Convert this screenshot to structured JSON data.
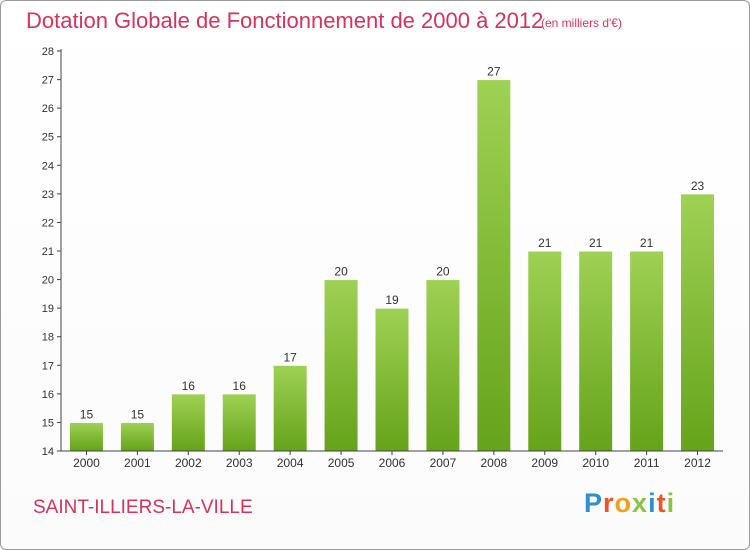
{
  "header": {
    "title": "Dotation Globale de Fonctionnement de 2000 à 2012",
    "subtitle": "(en milliers d'€)"
  },
  "footer": {
    "commune": "SAINT-ILLIERS-LA-VILLE",
    "logo_letters": [
      "P",
      "r",
      "o",
      "x",
      "i",
      "t",
      "i"
    ],
    "logo_colors": [
      "#2f8fd0",
      "#e8552b",
      "#f2a01c",
      "#8ac43f",
      "#2f8fd0",
      "#e8552b",
      "#8ac43f"
    ]
  },
  "colors": {
    "accent": "#d5335c",
    "bar_top": "#9fd154",
    "bar_bottom": "#65a31a",
    "axis": "#444444",
    "grid": "#dddddd"
  },
  "chart_data": {
    "type": "bar",
    "categories": [
      "2000",
      "2001",
      "2002",
      "2003",
      "2004",
      "2005",
      "2006",
      "2007",
      "2008",
      "2009",
      "2010",
      "2011",
      "2012"
    ],
    "values": [
      15,
      15,
      16,
      16,
      17,
      20,
      19,
      20,
      27,
      21,
      21,
      21,
      23
    ],
    "title": "Dotation Globale de Fonctionnement de 2000 à 2012",
    "subtitle": "(en milliers d'€)",
    "xlabel": "",
    "ylabel": "",
    "ylim": [
      14,
      28
    ],
    "yticks": [
      14,
      15,
      16,
      17,
      18,
      19,
      20,
      21,
      22,
      23,
      24,
      25,
      26,
      27,
      28
    ],
    "grid": false,
    "data_labels": true
  }
}
